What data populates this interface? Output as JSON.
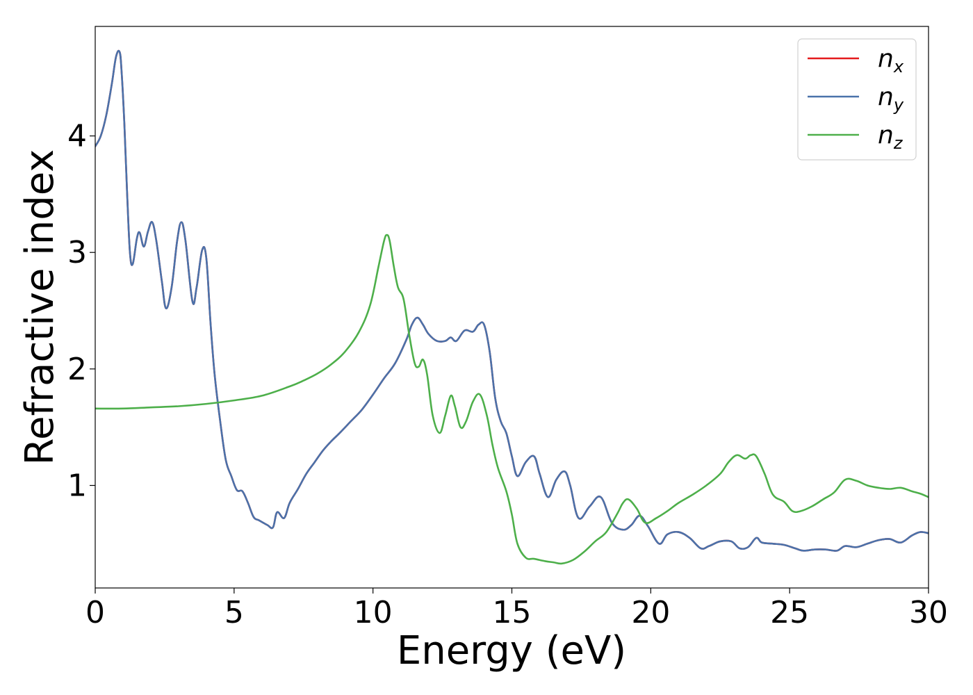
{
  "chart_data": {
    "type": "line",
    "title": "",
    "xlabel": "Energy (eV)",
    "ylabel": "Refractive index",
    "xlim": [
      0,
      30
    ],
    "ylim": [
      0.12,
      4.94
    ],
    "xticks": [
      0,
      5,
      10,
      15,
      20,
      25,
      30
    ],
    "xtick_labels": [
      "0",
      "5",
      "10",
      "15",
      "20",
      "25",
      "30"
    ],
    "yticks": [
      1,
      2,
      3,
      4
    ],
    "ytick_labels": [
      "1",
      "2",
      "3",
      "4"
    ],
    "grid": false,
    "legend_position": "top-right",
    "series": [
      {
        "name": "n_x",
        "legend_main": "n",
        "legend_sub": "x",
        "color": "#e41a1c",
        "x": [
          0,
          0.2,
          0.4,
          0.6,
          0.75,
          0.88,
          0.95,
          1.05,
          1.15,
          1.25,
          1.35,
          1.5,
          1.6,
          1.75,
          1.9,
          2.05,
          2.2,
          2.4,
          2.55,
          2.75,
          2.95,
          3.1,
          3.25,
          3.5,
          3.65,
          3.85,
          4.0,
          4.15,
          4.3,
          4.5,
          4.7,
          4.9,
          5.1,
          5.3,
          5.5,
          5.7,
          5.9,
          6.2,
          6.4,
          6.55,
          6.8,
          7.0,
          7.3,
          7.6,
          7.9,
          8.2,
          8.5,
          8.8,
          9.2,
          9.6,
          10.0,
          10.4,
          10.8,
          11.2,
          11.4,
          11.6,
          11.8,
          12.0,
          12.3,
          12.6,
          12.8,
          13.0,
          13.3,
          13.6,
          13.8,
          14.0,
          14.2,
          14.4,
          14.6,
          14.8,
          15.0,
          15.2,
          15.5,
          15.8,
          16.0,
          16.3,
          16.6,
          16.9,
          17.1,
          17.4,
          17.8,
          18.2,
          18.6,
          19.0,
          19.3,
          19.6,
          19.9,
          20.3,
          20.6,
          21.0,
          21.4,
          21.8,
          22.1,
          22.5,
          22.9,
          23.2,
          23.5,
          23.8,
          24.0,
          24.4,
          24.8,
          25.2,
          25.5,
          25.9,
          26.3,
          26.7,
          27.0,
          27.4,
          27.8,
          28.2,
          28.6,
          29.0,
          29.4,
          29.7,
          30.0
        ],
        "y": [
          3.91,
          4.0,
          4.18,
          4.45,
          4.68,
          4.72,
          4.55,
          4.1,
          3.5,
          3.0,
          2.9,
          3.12,
          3.17,
          3.05,
          3.18,
          3.26,
          3.1,
          2.75,
          2.52,
          2.7,
          3.1,
          3.26,
          3.1,
          2.58,
          2.7,
          3.02,
          2.95,
          2.4,
          1.95,
          1.55,
          1.22,
          1.08,
          0.96,
          0.95,
          0.85,
          0.73,
          0.7,
          0.66,
          0.64,
          0.77,
          0.72,
          0.85,
          0.97,
          1.1,
          1.2,
          1.3,
          1.38,
          1.45,
          1.55,
          1.65,
          1.78,
          1.92,
          2.05,
          2.25,
          2.38,
          2.44,
          2.38,
          2.3,
          2.24,
          2.24,
          2.27,
          2.24,
          2.33,
          2.32,
          2.38,
          2.38,
          2.15,
          1.75,
          1.55,
          1.45,
          1.25,
          1.08,
          1.2,
          1.25,
          1.1,
          0.9,
          1.05,
          1.12,
          1.0,
          0.72,
          0.82,
          0.9,
          0.68,
          0.62,
          0.66,
          0.74,
          0.65,
          0.5,
          0.58,
          0.6,
          0.55,
          0.46,
          0.48,
          0.52,
          0.52,
          0.46,
          0.47,
          0.55,
          0.51,
          0.5,
          0.49,
          0.46,
          0.44,
          0.45,
          0.45,
          0.44,
          0.48,
          0.47,
          0.5,
          0.53,
          0.54,
          0.51,
          0.57,
          0.6,
          0.59
        ]
      },
      {
        "name": "n_y",
        "legend_main": "n",
        "legend_sub": "y",
        "color": "#4a72aa",
        "x": [
          0,
          0.2,
          0.4,
          0.6,
          0.75,
          0.88,
          0.95,
          1.05,
          1.15,
          1.25,
          1.35,
          1.5,
          1.6,
          1.75,
          1.9,
          2.05,
          2.2,
          2.4,
          2.55,
          2.75,
          2.95,
          3.1,
          3.25,
          3.5,
          3.65,
          3.85,
          4.0,
          4.15,
          4.3,
          4.5,
          4.7,
          4.9,
          5.1,
          5.3,
          5.5,
          5.7,
          5.9,
          6.2,
          6.4,
          6.55,
          6.8,
          7.0,
          7.3,
          7.6,
          7.9,
          8.2,
          8.5,
          8.8,
          9.2,
          9.6,
          10.0,
          10.4,
          10.8,
          11.2,
          11.4,
          11.6,
          11.8,
          12.0,
          12.3,
          12.6,
          12.8,
          13.0,
          13.3,
          13.6,
          13.8,
          14.0,
          14.2,
          14.4,
          14.6,
          14.8,
          15.0,
          15.2,
          15.5,
          15.8,
          16.0,
          16.3,
          16.6,
          16.9,
          17.1,
          17.4,
          17.8,
          18.2,
          18.6,
          19.0,
          19.3,
          19.6,
          19.9,
          20.3,
          20.6,
          21.0,
          21.4,
          21.8,
          22.1,
          22.5,
          22.9,
          23.2,
          23.5,
          23.8,
          24.0,
          24.4,
          24.8,
          25.2,
          25.5,
          25.9,
          26.3,
          26.7,
          27.0,
          27.4,
          27.8,
          28.2,
          28.6,
          29.0,
          29.4,
          29.7,
          30.0
        ],
        "y": [
          3.91,
          4.0,
          4.18,
          4.45,
          4.68,
          4.72,
          4.55,
          4.1,
          3.5,
          3.0,
          2.9,
          3.12,
          3.17,
          3.05,
          3.18,
          3.26,
          3.1,
          2.75,
          2.52,
          2.7,
          3.1,
          3.26,
          3.1,
          2.58,
          2.7,
          3.02,
          2.95,
          2.4,
          1.95,
          1.55,
          1.22,
          1.08,
          0.96,
          0.95,
          0.85,
          0.73,
          0.7,
          0.66,
          0.64,
          0.77,
          0.72,
          0.85,
          0.97,
          1.1,
          1.2,
          1.3,
          1.38,
          1.45,
          1.55,
          1.65,
          1.78,
          1.92,
          2.05,
          2.25,
          2.38,
          2.44,
          2.38,
          2.3,
          2.24,
          2.24,
          2.27,
          2.24,
          2.33,
          2.32,
          2.38,
          2.38,
          2.15,
          1.75,
          1.55,
          1.45,
          1.25,
          1.08,
          1.2,
          1.25,
          1.1,
          0.9,
          1.05,
          1.12,
          1.0,
          0.72,
          0.82,
          0.9,
          0.68,
          0.62,
          0.66,
          0.74,
          0.65,
          0.5,
          0.58,
          0.6,
          0.55,
          0.46,
          0.48,
          0.52,
          0.52,
          0.46,
          0.47,
          0.55,
          0.51,
          0.5,
          0.49,
          0.46,
          0.44,
          0.45,
          0.45,
          0.44,
          0.48,
          0.47,
          0.5,
          0.53,
          0.54,
          0.51,
          0.57,
          0.6,
          0.59
        ]
      },
      {
        "name": "n_z",
        "legend_main": "n",
        "legend_sub": "z",
        "color": "#4daf4a",
        "x": [
          0,
          1,
          2,
          3,
          4,
          5,
          6,
          7,
          7.5,
          8,
          8.5,
          9,
          9.5,
          9.9,
          10.2,
          10.4,
          10.5,
          10.6,
          10.75,
          10.9,
          11.1,
          11.3,
          11.5,
          11.65,
          11.8,
          11.95,
          12.15,
          12.4,
          12.6,
          12.8,
          12.95,
          13.15,
          13.35,
          13.6,
          13.85,
          14.1,
          14.3,
          14.5,
          14.8,
          15.0,
          15.2,
          15.5,
          15.8,
          16.2,
          16.5,
          16.8,
          17.2,
          17.6,
          18.0,
          18.4,
          18.8,
          19.0,
          19.2,
          19.5,
          19.8,
          20.2,
          20.6,
          21.0,
          21.5,
          22.0,
          22.5,
          22.8,
          23.1,
          23.4,
          23.6,
          23.8,
          24.1,
          24.4,
          24.8,
          25.1,
          25.4,
          25.8,
          26.2,
          26.6,
          27.0,
          27.4,
          27.8,
          28.2,
          28.6,
          29.0,
          29.4,
          29.7,
          30.0
        ],
        "y": [
          1.66,
          1.66,
          1.67,
          1.68,
          1.7,
          1.73,
          1.77,
          1.85,
          1.9,
          1.96,
          2.04,
          2.15,
          2.32,
          2.55,
          2.88,
          3.1,
          3.15,
          3.1,
          2.88,
          2.7,
          2.6,
          2.3,
          2.05,
          2.02,
          2.08,
          1.95,
          1.6,
          1.45,
          1.6,
          1.77,
          1.68,
          1.5,
          1.55,
          1.72,
          1.78,
          1.6,
          1.35,
          1.15,
          0.95,
          0.75,
          0.5,
          0.38,
          0.37,
          0.35,
          0.34,
          0.33,
          0.36,
          0.43,
          0.52,
          0.6,
          0.76,
          0.85,
          0.88,
          0.8,
          0.68,
          0.72,
          0.78,
          0.85,
          0.92,
          1.0,
          1.1,
          1.2,
          1.26,
          1.23,
          1.26,
          1.25,
          1.1,
          0.92,
          0.86,
          0.78,
          0.78,
          0.82,
          0.88,
          0.94,
          1.05,
          1.04,
          1.0,
          0.98,
          0.97,
          0.98,
          0.95,
          0.93,
          0.9
        ]
      }
    ]
  }
}
